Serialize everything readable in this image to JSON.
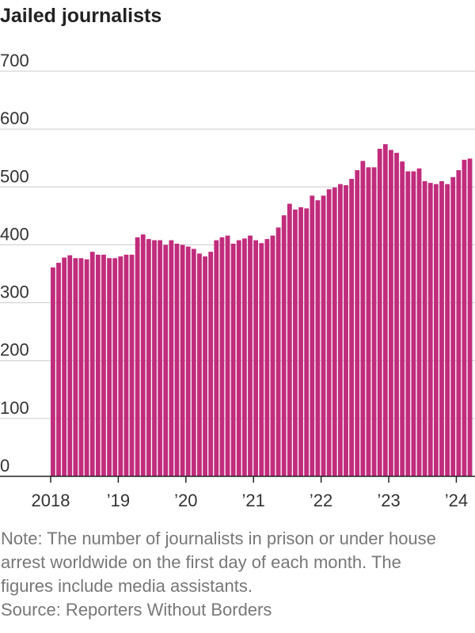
{
  "chart_data": {
    "type": "bar",
    "title": "Jailed journalists",
    "values": [
      361,
      369,
      378,
      382,
      377,
      377,
      375,
      388,
      383,
      383,
      377,
      377,
      380,
      383,
      383,
      413,
      418,
      410,
      408,
      408,
      400,
      408,
      402,
      400,
      397,
      393,
      385,
      380,
      388,
      408,
      413,
      416,
      402,
      408,
      411,
      416,
      408,
      403,
      410,
      416,
      430,
      451,
      471,
      461,
      465,
      463,
      485,
      477,
      485,
      496,
      499,
      505,
      503,
      514,
      529,
      545,
      534,
      534,
      566,
      574,
      564,
      559,
      544,
      527,
      527,
      532,
      510,
      507,
      505,
      510,
      505,
      517,
      529,
      547,
      549
    ],
    "color": "#c12c7c",
    "ylim": [
      0,
      700
    ],
    "yticks": [
      0,
      100,
      200,
      300,
      400,
      500,
      600,
      700
    ],
    "grid": true,
    "xticks": [
      {
        "value": 0,
        "label": "2018"
      },
      {
        "value": 12,
        "label": "’19"
      },
      {
        "value": 24,
        "label": "’20"
      },
      {
        "value": 36,
        "label": "’21"
      },
      {
        "value": 48,
        "label": "’22"
      },
      {
        "value": 60,
        "label": "’23"
      },
      {
        "value": 72,
        "label": "’24"
      }
    ],
    "note": "Note: The number of journalists in prison or under house arrest worldwide on the first day of each month. The figures include media assistants.",
    "source": "Source: Reporters Without Borders"
  }
}
